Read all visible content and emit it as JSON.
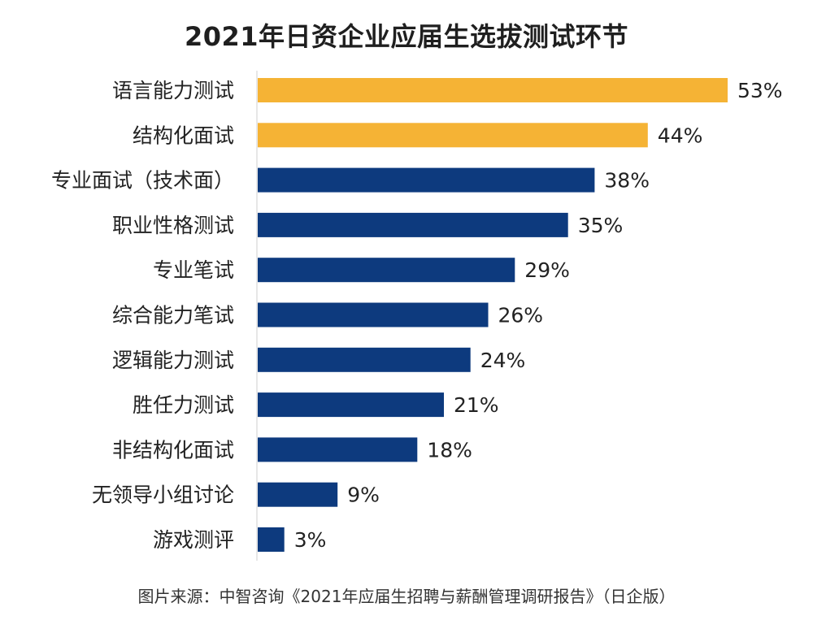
{
  "title": "2021年日资企业应届生选拔测试环节",
  "source": "图片来源：中智咨询《2021年应届生招聘与薪酬管理调研报告》（日企版）",
  "colors": {
    "highlight": "#F5B335",
    "normal": "#0D3A7E",
    "axis": "#cfcfcf",
    "label": "#222222"
  },
  "chart_data": {
    "type": "bar",
    "orientation": "horizontal",
    "categories": [
      "语言能力测试",
      "结构化面试",
      "专业面试（技术面）",
      "职业性格测试",
      "专业笔试",
      "综合能力笔试",
      "逻辑能力测试",
      "胜任力测试",
      "非结构化面试",
      "无领导小组讨论",
      "游戏测评"
    ],
    "values": [
      53,
      44,
      38,
      35,
      29,
      26,
      24,
      21,
      18,
      9,
      3
    ],
    "value_labels": [
      "53%",
      "44%",
      "38%",
      "35%",
      "29%",
      "26%",
      "24%",
      "21%",
      "18%",
      "9%",
      "3%"
    ],
    "highlighted": [
      true,
      true,
      false,
      false,
      false,
      false,
      false,
      false,
      false,
      false,
      false
    ],
    "title": "2021年日资企业应届生选拔测试环节",
    "xlabel": "",
    "ylabel": "",
    "xlim": [
      0,
      53
    ],
    "grid": false,
    "legend": "none"
  }
}
